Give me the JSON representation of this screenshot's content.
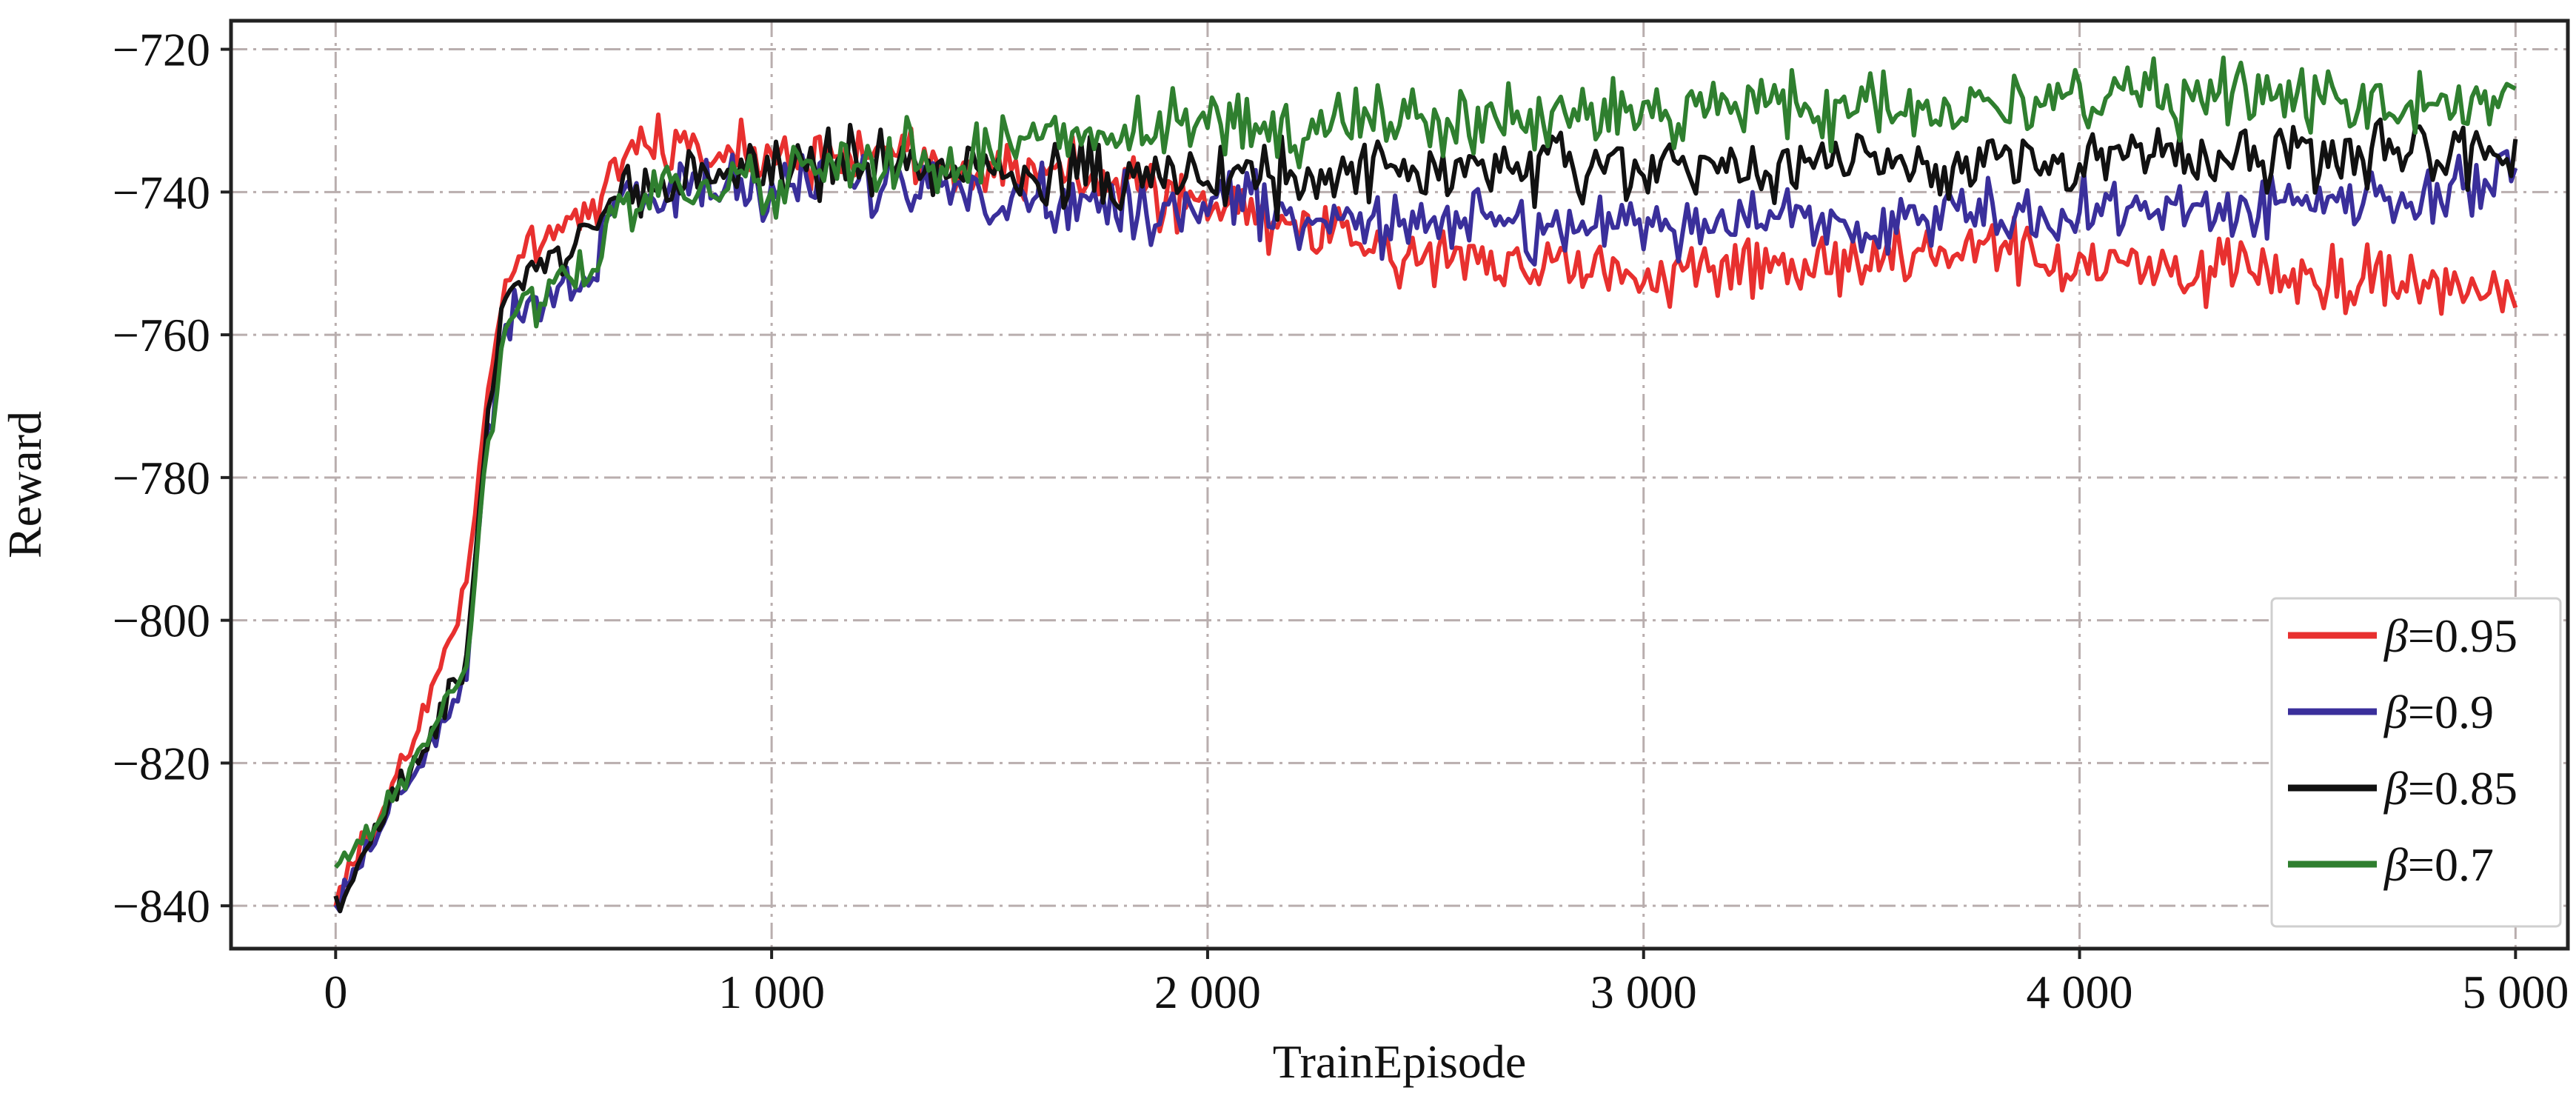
{
  "chart_data": {
    "type": "line",
    "xlabel": "TrainEpisode",
    "ylabel": "Reward",
    "xlim": [
      -240,
      5120
    ],
    "ylim": [
      -846,
      -716
    ],
    "xticks": [
      0,
      1000,
      2000,
      3000,
      4000,
      5000
    ],
    "xtick_labels": [
      "0",
      "1 000",
      "2 000",
      "3 000",
      "4 000",
      "5 000"
    ],
    "yticks": [
      -720,
      -740,
      -760,
      -780,
      -800,
      -820,
      -840
    ],
    "ytick_labels": [
      "−720",
      "−740",
      "−760",
      "−780",
      "−800",
      "−820",
      "−840"
    ],
    "grid": true,
    "legend_position": "lower-right",
    "x": [
      0,
      100,
      200,
      300,
      340,
      380,
      400,
      500,
      600,
      620,
      700,
      800,
      900,
      1000,
      1200,
      1400,
      1600,
      1800,
      2000,
      2200,
      2400,
      2600,
      2800,
      3000,
      3200,
      3400,
      3600,
      3800,
      4000,
      4200,
      4400,
      4600,
      4800,
      5000
    ],
    "series": [
      {
        "name": "β=0.95",
        "symbol": "β",
        "value_text": "=0.95",
        "color": "#e8302f",
        "values": [
          -839,
          -827,
          -814,
          -795,
          -772,
          -755,
          -752,
          -745,
          -743,
          -737,
          -734,
          -734,
          -735,
          -734,
          -735,
          -735,
          -737,
          -739,
          -742,
          -745,
          -748,
          -749,
          -750,
          -752,
          -751,
          -750,
          -749,
          -749,
          -750,
          -751,
          -751,
          -752,
          -753,
          -753
        ]
      },
      {
        "name": "β=0.9",
        "symbol": "β",
        "value_text": "=0.9",
        "color": "#3a2f9b",
        "values": [
          -840,
          -829,
          -819,
          -808,
          -778,
          -762,
          -757,
          -754,
          -752,
          -742,
          -740,
          -740,
          -739,
          -739,
          -739,
          -739,
          -741,
          -742,
          -742,
          -743,
          -744,
          -744,
          -745,
          -745,
          -744,
          -744,
          -744,
          -743,
          -743,
          -742,
          -742,
          -741,
          -741,
          -738
        ]
      },
      {
        "name": "β=0.85",
        "symbol": "β",
        "value_text": "=0.85",
        "color": "#111111",
        "values": [
          -840,
          -829,
          -818,
          -806,
          -778,
          -758,
          -753,
          -749,
          -746,
          -741,
          -739,
          -738,
          -737,
          -736,
          -736,
          -737,
          -737,
          -738,
          -738,
          -738,
          -737,
          -737,
          -737,
          -737,
          -737,
          -736,
          -736,
          -736,
          -735,
          -735,
          -735,
          -734,
          -734,
          -734
        ]
      },
      {
        "name": "β=0.7",
        "symbol": "β",
        "value_text": "=0.7",
        "color": "#2f7f2f",
        "values": [
          -835,
          -828,
          -818,
          -807,
          -780,
          -762,
          -757,
          -753,
          -750,
          -743,
          -741,
          -740,
          -739,
          -738,
          -736,
          -735,
          -733,
          -732,
          -731,
          -731,
          -730,
          -730,
          -729,
          -729,
          -728,
          -728,
          -728,
          -728,
          -727,
          -727,
          -727,
          -727,
          -727,
          -727
        ]
      }
    ]
  }
}
